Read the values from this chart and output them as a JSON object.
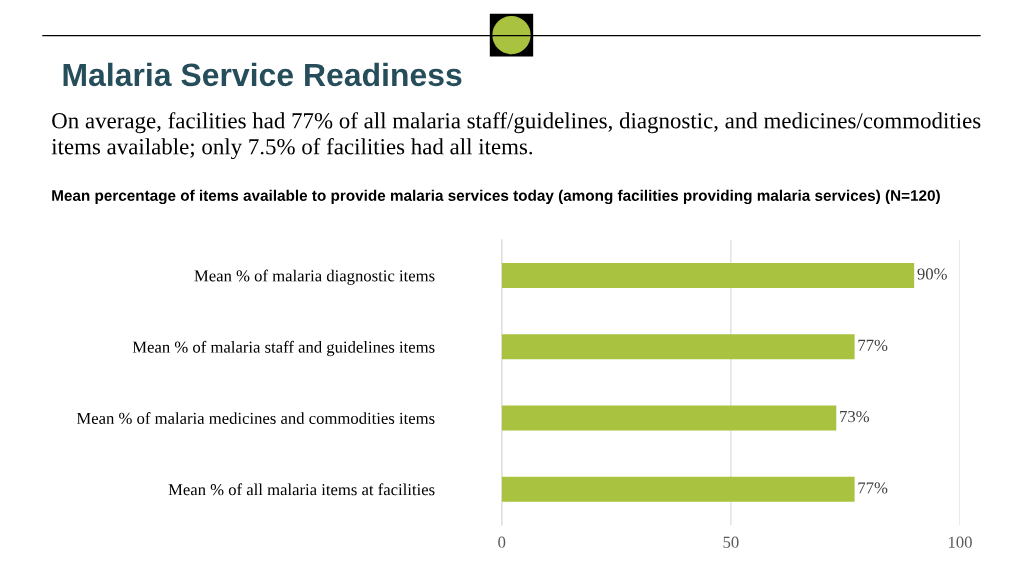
{
  "chart_data": {
    "type": "bar",
    "orientation": "horizontal",
    "title": "Malaria Service Readiness",
    "subtitle": "On average, facilities had 77% of all malaria staff/guidelines, diagnostic, and medicines/commodities items available; only 7.5% of facilities had all items.",
    "annotations": [
      "Mean percentage of items available to provide malaria services today (among facilities providing malaria services) (N=120)"
    ],
    "categories": [
      "Mean % of malaria diagnostic items",
      "Mean % of malaria staff and guidelines items",
      "Mean % of malaria medicines and commodities items",
      "Mean % of all malaria items at facilities"
    ],
    "values": [
      90,
      77,
      73,
      77
    ],
    "value_labels": [
      "90%",
      "77%",
      "73%",
      "77%"
    ],
    "color": "#a9c23f",
    "xlim": [
      0,
      100
    ],
    "xticks": [
      0,
      50,
      100
    ],
    "grid": "x",
    "legend": false
  }
}
